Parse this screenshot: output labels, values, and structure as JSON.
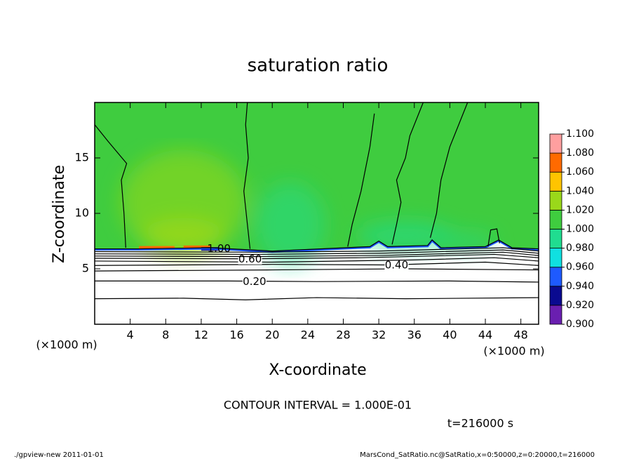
{
  "chart_data": {
    "type": "contour",
    "title": "saturation ratio",
    "xlabel": "X-coordinate",
    "ylabel": "Z-coordinate",
    "x_unit_left": "(×1000 m)",
    "x_unit_right": "(×1000 m)",
    "xlim": [
      0,
      50
    ],
    "xticks": [
      4,
      8,
      12,
      16,
      20,
      24,
      28,
      32,
      36,
      40,
      44,
      48
    ],
    "ylim": [
      0,
      20
    ],
    "yticks": [
      5,
      10,
      15
    ],
    "colorbar": {
      "levels": [
        {
          "value": 0.9,
          "label": "0.900"
        },
        {
          "value": 0.92,
          "label": "0.920"
        },
        {
          "value": 0.94,
          "label": "0.940"
        },
        {
          "value": 0.96,
          "label": "0.960"
        },
        {
          "value": 0.98,
          "label": "0.980"
        },
        {
          "value": 1.0,
          "label": "1.000"
        },
        {
          "value": 1.02,
          "label": "1.020"
        },
        {
          "value": 1.04,
          "label": "1.040"
        },
        {
          "value": 1.06,
          "label": "1.060"
        },
        {
          "value": 1.08,
          "label": "1.080"
        },
        {
          "value": 1.1,
          "label": "1.100"
        }
      ],
      "colors": [
        "#6a1fb0",
        "#0a0a90",
        "#1e5aff",
        "#10e0e0",
        "#20dd90",
        "#3fcc3f",
        "#9ad81a",
        "#ffc400",
        "#ff6a00",
        "#ff9f9f"
      ]
    },
    "contour_lines": [
      {
        "level": 0.1,
        "points": [
          [
            0,
            2.3
          ],
          [
            10,
            2.35
          ],
          [
            17,
            2.2
          ],
          [
            25,
            2.4
          ],
          [
            35,
            2.3
          ],
          [
            50,
            2.4
          ]
        ]
      },
      {
        "level": {
          "value": 0.2,
          "label": "0.20"
        },
        "points": [
          [
            0,
            3.9
          ],
          [
            15,
            3.9
          ],
          [
            25,
            3.85
          ],
          [
            40,
            3.9
          ],
          [
            50,
            3.8
          ]
        ]
      },
      {
        "level": 0.3,
        "points": [
          [
            0,
            4.8
          ],
          [
            20,
            4.9
          ],
          [
            35,
            5.0
          ],
          [
            50,
            4.9
          ]
        ]
      },
      {
        "level": {
          "value": 0.4,
          "label": "0.40"
        },
        "points": [
          [
            0,
            5.3
          ],
          [
            20,
            5.4
          ],
          [
            33,
            5.35
          ],
          [
            44,
            5.6
          ],
          [
            50,
            5.3
          ]
        ]
      },
      {
        "level": 0.5,
        "points": [
          [
            0,
            5.7
          ],
          [
            20,
            5.6
          ],
          [
            36,
            5.8
          ],
          [
            45,
            6.0
          ],
          [
            50,
            5.7
          ]
        ]
      },
      {
        "level": {
          "value": 0.6,
          "label": "0.60"
        },
        "points": [
          [
            0,
            5.95
          ],
          [
            17,
            5.9
          ],
          [
            30,
            6.0
          ],
          [
            45,
            6.3
          ],
          [
            50,
            6.0
          ]
        ]
      },
      {
        "level": 0.7,
        "points": [
          [
            0,
            6.15
          ],
          [
            18,
            6.1
          ],
          [
            32,
            6.2
          ],
          [
            46,
            6.5
          ],
          [
            50,
            6.2
          ]
        ]
      },
      {
        "level": 0.8,
        "points": [
          [
            0,
            6.35
          ],
          [
            18,
            6.3
          ],
          [
            32,
            6.4
          ],
          [
            46,
            6.7
          ],
          [
            50,
            6.4
          ]
        ]
      },
      {
        "level": 0.9,
        "points": [
          [
            0,
            6.55
          ],
          [
            18,
            6.5
          ],
          [
            32,
            6.6
          ],
          [
            46,
            6.9
          ],
          [
            50,
            6.6
          ]
        ]
      },
      {
        "level": {
          "value": 1.0,
          "label": "1.00"
        },
        "points": [
          [
            0,
            6.8
          ],
          [
            5,
            6.8
          ],
          [
            13,
            6.9
          ],
          [
            20,
            6.6
          ],
          [
            31,
            7.0
          ],
          [
            32,
            7.5
          ],
          [
            33,
            7.0
          ],
          [
            37.5,
            7.1
          ],
          [
            38,
            7.6
          ],
          [
            39,
            6.9
          ],
          [
            44,
            7.0
          ],
          [
            45.5,
            7.6
          ],
          [
            47,
            6.9
          ],
          [
            50,
            6.8
          ]
        ]
      },
      {
        "level": 1.0,
        "points": [
          [
            3.5,
            6.9
          ],
          [
            3.3,
            10
          ],
          [
            3.0,
            13
          ],
          [
            3.6,
            14.5
          ],
          [
            1.5,
            16.5
          ],
          [
            0.5,
            17.5
          ],
          [
            0,
            18
          ]
        ]
      },
      {
        "level": 1.0,
        "points": [
          [
            17.5,
            6.8
          ],
          [
            17.2,
            9
          ],
          [
            16.8,
            12
          ],
          [
            17.3,
            15
          ],
          [
            17.0,
            18
          ],
          [
            17.2,
            20
          ]
        ]
      },
      {
        "level": 1.0,
        "points": [
          [
            28.5,
            7.0
          ],
          [
            29,
            9
          ],
          [
            29.5,
            10.5
          ],
          [
            30,
            12
          ],
          [
            30.5,
            14
          ],
          [
            31,
            16
          ],
          [
            31.5,
            19
          ]
        ]
      },
      {
        "level": 1.0,
        "points": [
          [
            33.5,
            7.2
          ],
          [
            34,
            9
          ],
          [
            34.5,
            11
          ],
          [
            34,
            13
          ],
          [
            35,
            15
          ],
          [
            35.5,
            17
          ],
          [
            37,
            20
          ]
        ]
      },
      {
        "level": 1.0,
        "points": [
          [
            37.8,
            7.8
          ],
          [
            38.5,
            10
          ],
          [
            39,
            13
          ],
          [
            40,
            16
          ],
          [
            41,
            18
          ],
          [
            42,
            20
          ]
        ]
      },
      {
        "level": 1.0,
        "points": [
          [
            44.3,
            7.0
          ],
          [
            44.6,
            8.5
          ],
          [
            45.3,
            8.6
          ],
          [
            45.6,
            7.3
          ]
        ]
      }
    ],
    "contour_interval_text": "CONTOUR INTERVAL = 1.000E-01",
    "time_text": "t=216000 s"
  },
  "footer": {
    "left": "./gpview-new   2011-01-01",
    "right": "MarsCond_SatRatio.nc@SatRatio,x=0:50000,z=0:20000,t=216000"
  }
}
